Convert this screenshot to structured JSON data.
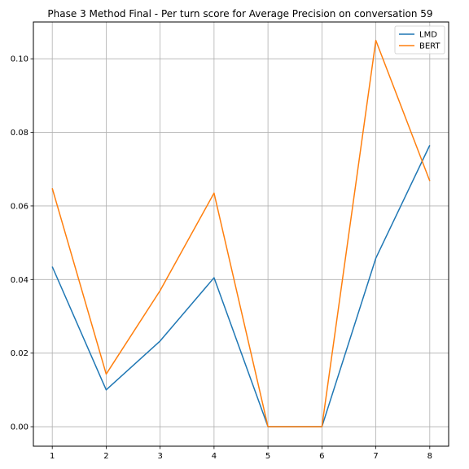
{
  "chart_data": {
    "type": "line",
    "title": "Phase 3 Method Final - Per turn score for Average Precision on conversation 59",
    "xlabel": "",
    "ylabel": "",
    "x": [
      1,
      2,
      3,
      4,
      5,
      6,
      7,
      8
    ],
    "xlim": [
      0.65,
      8.35
    ],
    "ylim": [
      -0.0053,
      0.11
    ],
    "xticks": [
      "1",
      "2",
      "3",
      "4",
      "5",
      "6",
      "7",
      "8"
    ],
    "yticks": [
      0.0,
      0.02,
      0.04,
      0.06,
      0.08,
      0.1
    ],
    "ytick_labels": [
      "0.00",
      "0.02",
      "0.04",
      "0.06",
      "0.08",
      "0.10"
    ],
    "grid": true,
    "legend": "top-right",
    "series": [
      {
        "name": "LMD",
        "color": "#1f77b4",
        "values": [
          0.0435,
          0.01,
          0.0233,
          0.0405,
          0.0,
          0.0,
          0.0458,
          0.0765
        ]
      },
      {
        "name": "BERT",
        "color": "#ff7f0e",
        "values": [
          0.0648,
          0.0143,
          0.037,
          0.0635,
          0.0,
          0.0,
          0.105,
          0.0668
        ]
      }
    ]
  }
}
